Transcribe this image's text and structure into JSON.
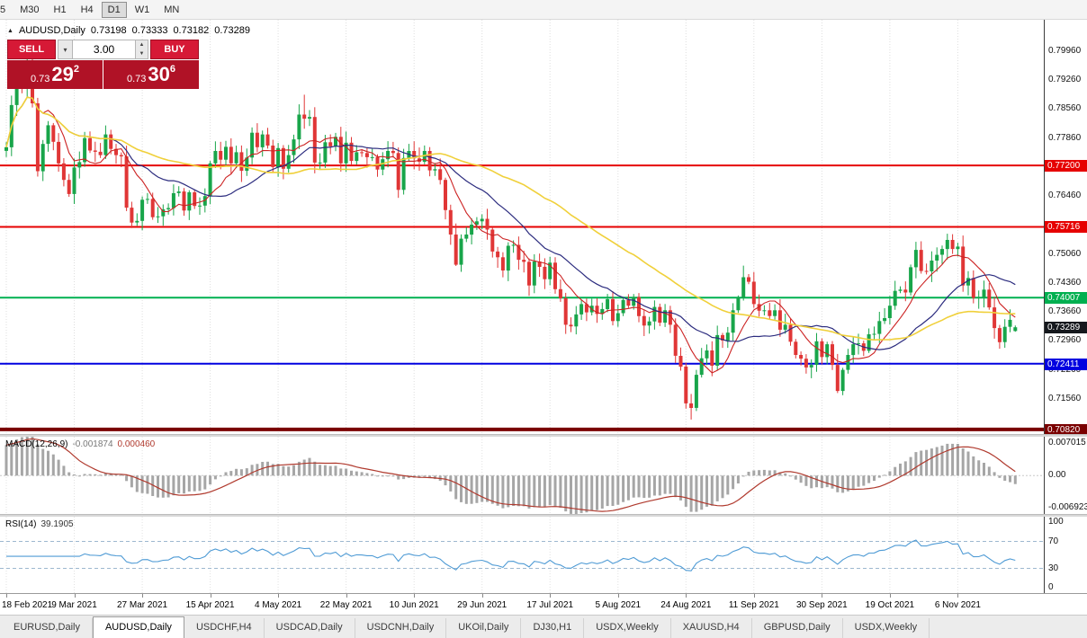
{
  "toolbar": {
    "timeframes": [
      {
        "label": "5",
        "active": false
      },
      {
        "label": "M30",
        "active": false
      },
      {
        "label": "H1",
        "active": false
      },
      {
        "label": "H4",
        "active": false
      },
      {
        "label": "D1",
        "active": true
      },
      {
        "label": "W1",
        "active": false
      },
      {
        "label": "MN",
        "active": false
      }
    ]
  },
  "icons": {
    "chart_arrow": "▲",
    "dropdown": "▾",
    "spin_up": "▲",
    "spin_down": "▼"
  },
  "chart_header": {
    "symbol": "AUDUSD,Daily",
    "open": "0.73198",
    "high": "0.73333",
    "low": "0.73182",
    "close": "0.73289"
  },
  "trade_panel": {
    "sell_label": "SELL",
    "buy_label": "BUY",
    "volume": "3.00",
    "sell_price": {
      "prefix": "0.73",
      "big": "29",
      "sup": "2"
    },
    "buy_price": {
      "prefix": "0.73",
      "big": "30",
      "sup": "6"
    }
  },
  "chart_data": {
    "type": "candlestick",
    "symbol": "AUDUSD",
    "timeframe": "Daily",
    "first_open": 0.7755,
    "closes": [
      0.7764,
      0.7866,
      0.7915,
      0.791,
      0.7969,
      0.787,
      0.7706,
      0.7772,
      0.7817,
      0.7777,
      0.7725,
      0.7685,
      0.7651,
      0.7715,
      0.7728,
      0.7786,
      0.7756,
      0.7753,
      0.7745,
      0.7795,
      0.776,
      0.7745,
      0.7742,
      0.7618,
      0.7582,
      0.7586,
      0.7637,
      0.7639,
      0.7595,
      0.7597,
      0.7614,
      0.7617,
      0.7653,
      0.7657,
      0.7611,
      0.7655,
      0.7622,
      0.7623,
      0.7646,
      0.7725,
      0.7755,
      0.7734,
      0.7765,
      0.7725,
      0.7752,
      0.7707,
      0.7739,
      0.7799,
      0.7764,
      0.7795,
      0.7768,
      0.7716,
      0.7762,
      0.7712,
      0.7745,
      0.7783,
      0.7843,
      0.7833,
      0.7837,
      0.7727,
      0.7727,
      0.7776,
      0.7766,
      0.7789,
      0.7725,
      0.7775,
      0.7731,
      0.7752,
      0.775,
      0.774,
      0.774,
      0.771,
      0.7735,
      0.7755,
      0.775,
      0.7661,
      0.7738,
      0.7755,
      0.7737,
      0.7729,
      0.7755,
      0.7708,
      0.7711,
      0.7685,
      0.7612,
      0.7553,
      0.748,
      0.7543,
      0.7553,
      0.7577,
      0.7585,
      0.7591,
      0.7565,
      0.7512,
      0.7498,
      0.7466,
      0.7526,
      0.7528,
      0.7492,
      0.7487,
      0.743,
      0.7488,
      0.7475,
      0.7445,
      0.7485,
      0.7421,
      0.7399,
      0.7335,
      0.7331,
      0.736,
      0.7385,
      0.7365,
      0.7381,
      0.7361,
      0.7373,
      0.7397,
      0.7344,
      0.7363,
      0.7395,
      0.7381,
      0.7402,
      0.7356,
      0.7333,
      0.7343,
      0.7378,
      0.734,
      0.737,
      0.7335,
      0.726,
      0.7234,
      0.7145,
      0.7134,
      0.7214,
      0.7254,
      0.7273,
      0.7236,
      0.731,
      0.7297,
      0.7316,
      0.737,
      0.74,
      0.745,
      0.7439,
      0.7385,
      0.7369,
      0.737,
      0.7356,
      0.737,
      0.7323,
      0.7335,
      0.7294,
      0.7262,
      0.7253,
      0.7232,
      0.7238,
      0.7295,
      0.7257,
      0.7288,
      0.7238,
      0.7175,
      0.7226,
      0.7262,
      0.7288,
      0.729,
      0.7272,
      0.7312,
      0.7313,
      0.7344,
      0.7351,
      0.7381,
      0.7417,
      0.742,
      0.7413,
      0.7474,
      0.7516,
      0.7465,
      0.7464,
      0.749,
      0.7504,
      0.7518,
      0.754,
      0.7518,
      0.7524,
      0.743,
      0.7448,
      0.74,
      0.7401,
      0.742,
      0.7377,
      0.7327,
      0.7293,
      0.733,
      0.7347,
      0.7329
    ],
    "overrides": {
      "5": {
        "high": 0.8007
      },
      "57": {
        "high": 0.7891
      },
      "86": {
        "low": 0.7477
      },
      "131": {
        "low": 0.7106
      },
      "141": {
        "high": 0.7478
      },
      "159": {
        "low": 0.717
      },
      "180": {
        "high": 0.7555
      },
      "190": {
        "low": 0.7277
      },
      "193": {
        "open": 0.73198,
        "high": 0.73333,
        "low": 0.73182,
        "close": 0.73289
      }
    },
    "price_range": {
      "top": 0.8072,
      "bottom": 0.7071
    },
    "colors": {
      "up": "#18a54a",
      "down": "#e03636"
    },
    "moving_averages": [
      {
        "period": 8,
        "color": "#cc2222",
        "width": 1.1
      },
      {
        "period": 20,
        "color": "#2b2b7e",
        "width": 1.2
      },
      {
        "period": 45,
        "color": "#f0d03a",
        "width": 1.6
      }
    ],
    "levels": [
      {
        "price": 0.772,
        "label": "0.77200",
        "color": "#e60000",
        "width": 2
      },
      {
        "price": 0.75716,
        "label": "0.75716",
        "color": "#e60000",
        "width": 2
      },
      {
        "price": 0.74007,
        "label": "0.74007",
        "color": "#00b050",
        "width": 2
      },
      {
        "price": 0.72411,
        "label": "0.72411",
        "color": "#0000e0",
        "width": 2
      },
      {
        "price": 0.7082,
        "label": "0.70820",
        "color": "#7a0000",
        "width": 4
      }
    ],
    "current_price": {
      "value": 0.73289,
      "label": "0.73289",
      "bg": "#15181d"
    },
    "y_ticks": [
      {
        "price": 0.7996,
        "label": "0.79960"
      },
      {
        "price": 0.7926,
        "label": "0.79260"
      },
      {
        "price": 0.7856,
        "label": "0.78560"
      },
      {
        "price": 0.7786,
        "label": "0.77860"
      },
      {
        "price": 0.7646,
        "label": "0.76460"
      },
      {
        "price": 0.7506,
        "label": "0.75060"
      },
      {
        "price": 0.7436,
        "label": "0.74360"
      },
      {
        "price": 0.7366,
        "label": "0.73660"
      },
      {
        "price": 0.7296,
        "label": "0.72960"
      },
      {
        "price": 0.7226,
        "label": "0.72260"
      },
      {
        "price": 0.7156,
        "label": "0.71560"
      }
    ],
    "x_ticks": [
      {
        "index": 0,
        "label": "18 Feb 2021"
      },
      {
        "index": 13,
        "label": "9 Mar 2021"
      },
      {
        "index": 26,
        "label": "27 Mar 2021"
      },
      {
        "index": 39,
        "label": "15 Apr 2021"
      },
      {
        "index": 52,
        "label": "4 May 2021"
      },
      {
        "index": 65,
        "label": "22 May 2021"
      },
      {
        "index": 78,
        "label": "10 Jun 2021"
      },
      {
        "index": 91,
        "label": "29 Jun 2021"
      },
      {
        "index": 104,
        "label": "17 Jul 2021"
      },
      {
        "index": 117,
        "label": "5 Aug 2021"
      },
      {
        "index": 130,
        "label": "24 Aug 2021"
      },
      {
        "index": 143,
        "label": "11 Sep 2021"
      },
      {
        "index": 156,
        "label": "30 Sep 2021"
      },
      {
        "index": 169,
        "label": "19 Oct 2021"
      },
      {
        "index": 182,
        "label": "6 Nov 2021"
      }
    ]
  },
  "indicators": {
    "macd": {
      "name": "MACD(12,26,9)",
      "value_main": "-0.001874",
      "value_signal": "0.000460",
      "fast": 12,
      "slow": 26,
      "signal_period": 9,
      "axis": {
        "top": 0.007015,
        "bottom": -0.006923
      },
      "axis_labels": {
        "top": "0.007015",
        "zero": "0.00",
        "bottom": "-0.006923"
      },
      "colors": {
        "histogram": "#a6a6a6",
        "signal": "#b03a2e"
      }
    },
    "rsi": {
      "name": "RSI(14)",
      "value": "39.1905",
      "period": 14,
      "axis_labels": [
        "100",
        "70",
        "30",
        "0"
      ],
      "levels": [
        70,
        30
      ],
      "color": "#4f9bd5",
      "level_color": "#9db8cf"
    }
  },
  "tabs": [
    {
      "label": "EURUSD,Daily",
      "active": false
    },
    {
      "label": "AUDUSD,Daily",
      "active": true
    },
    {
      "label": "USDCHF,H4",
      "active": false
    },
    {
      "label": "USDCAD,Daily",
      "active": false
    },
    {
      "label": "USDCNH,Daily",
      "active": false
    },
    {
      "label": "UKOil,Daily",
      "active": false
    },
    {
      "label": "DJ30,H1",
      "active": false
    },
    {
      "label": "USDX,Weekly",
      "active": false
    },
    {
      "label": "XAUUSD,H4",
      "active": false
    },
    {
      "label": "GBPUSD,Daily",
      "active": false
    },
    {
      "label": "USDX,Weekly",
      "active": false
    }
  ]
}
